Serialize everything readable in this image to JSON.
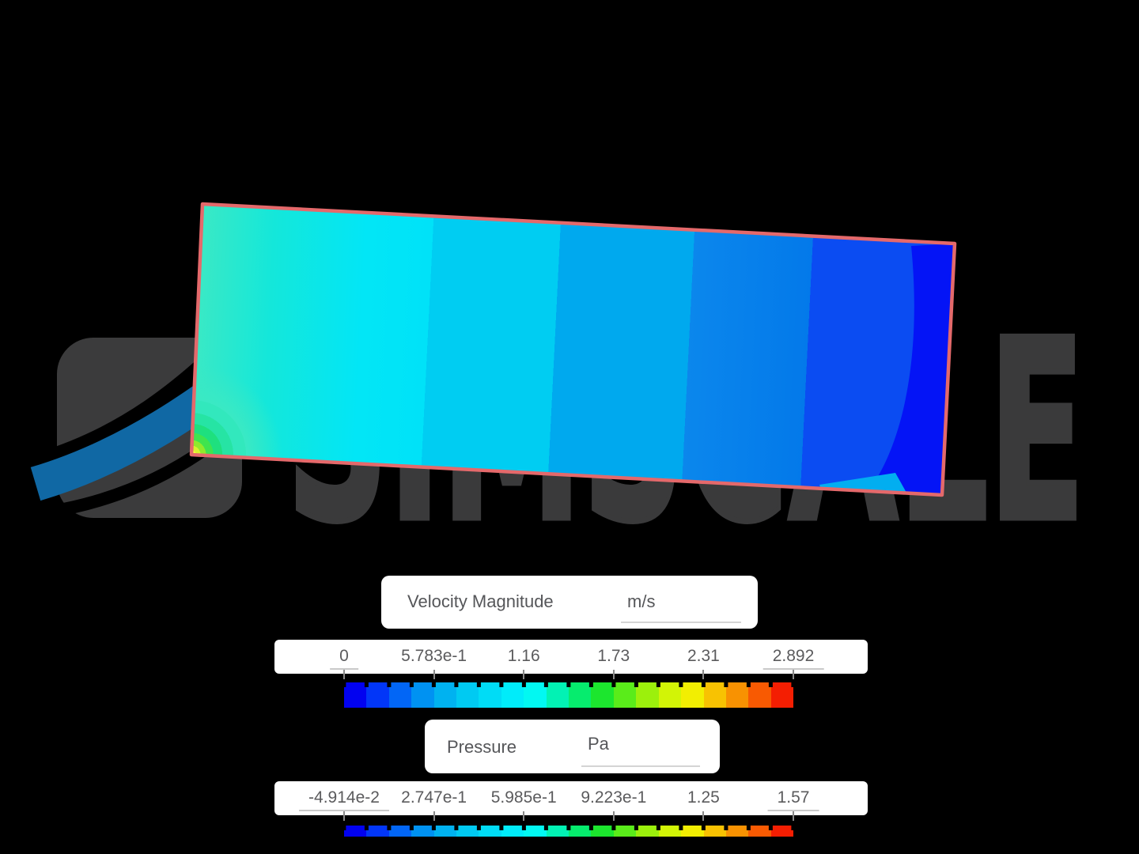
{
  "watermark": {
    "text": "SIMSCALE",
    "color": "#3a3a3b",
    "logo_gray": "#3b3b3c",
    "logo_blue": "#1068a4"
  },
  "contour": {
    "border_color": "#e4696b",
    "band_colors": {
      "turquoise": "#3ce9c4",
      "aqua": "#14e7da",
      "cyan_bright": "#02e6f6",
      "cyan": "#00e2f8",
      "cyan_mid": "#00cdf2",
      "light_blue": "#00a9ee",
      "dodger_blue": "#0b87ec",
      "dodger_deep": "#0379ea",
      "medium_blue": "#0b4cf2",
      "dark_blue": "#0414f6",
      "patch_blue": "#02aef0"
    },
    "hotspot_colors": [
      "#fcf83c",
      "#d8f22e",
      "#90ea2c",
      "#3fe44e",
      "#1ee07e",
      "#26e4a4",
      "#32e8bd",
      "#3ae9c4"
    ]
  },
  "legend_velocity": {
    "title": "Velocity Magnitude",
    "unit": "m/s",
    "ticks": [
      "0",
      "5.783e-1",
      "1.16",
      "1.73",
      "2.31",
      "2.892"
    ],
    "min": "0",
    "max": "2.892"
  },
  "legend_pressure": {
    "title": "Pressure",
    "unit": "Pa",
    "ticks": [
      "-4.914e-2",
      "2.747e-1",
      "5.985e-1",
      "9.223e-1",
      "1.25",
      "1.57"
    ],
    "min": "-4.914e-2",
    "max": "1.57"
  },
  "colorbar_colors": [
    "#0202f0",
    "#0236f8",
    "#0266f6",
    "#0092f2",
    "#00b2f0",
    "#00caf2",
    "#00dcf6",
    "#00ecfa",
    "#02f8f2",
    "#02f2b4",
    "#06ec6e",
    "#1ce62e",
    "#5aec1a",
    "#9cf00c",
    "#d2f406",
    "#f2ee02",
    "#f8c202",
    "#f89202",
    "#f85a02",
    "#f41e02"
  ]
}
